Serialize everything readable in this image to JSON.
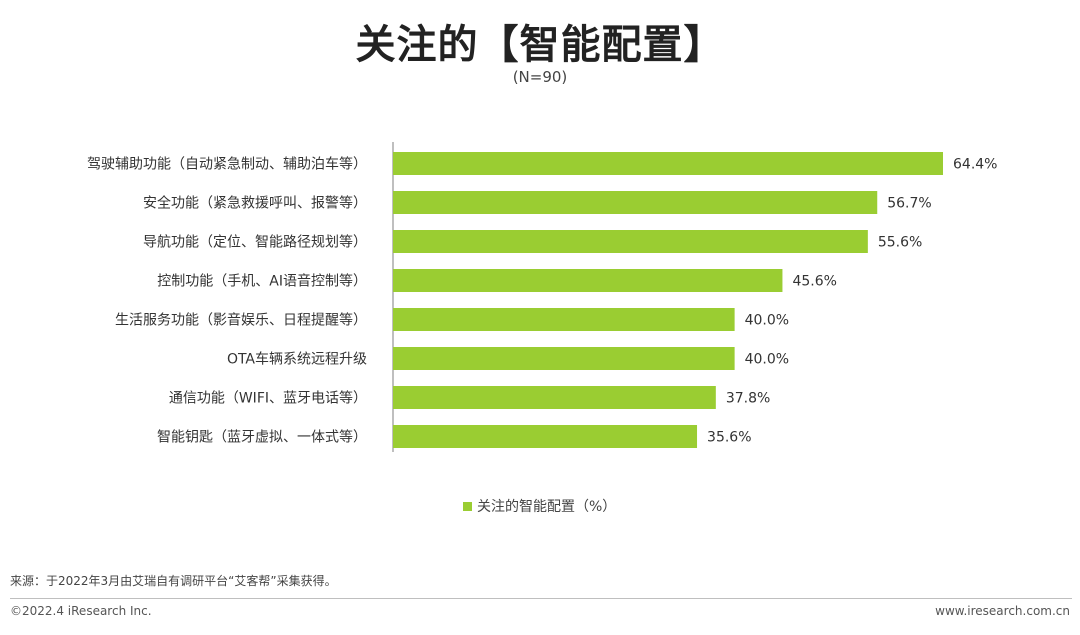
{
  "header": {
    "title": "关注的【智能配置】",
    "subtitle": "(N=90)"
  },
  "legend": {
    "label": "关注的智能配置（%）"
  },
  "colors": {
    "bar": "#9ACD32",
    "axis": "#7f7f7f"
  },
  "footer": {
    "source": "来源：于2022年3月由艾瑞自有调研平台“艾客帮”采集获得。",
    "copyright": "©2022.4 iResearch Inc.",
    "website": "www.iresearch.com.cn"
  },
  "chart_data": {
    "type": "bar",
    "orientation": "horizontal",
    "categories": [
      "驾驶辅助功能（自动紧急制动、辅助泊车等）",
      "安全功能（紧急救援呼叫、报警等）",
      "导航功能（定位、智能路径规划等）",
      "控制功能（手机、AI语音控制等）",
      "生活服务功能（影音娱乐、日程提醒等）",
      "OTA车辆系统远程升级",
      "通信功能（WIFI、蓝牙电话等）",
      "智能钥匙（蓝牙虚拟、一体式等）"
    ],
    "series": [
      {
        "name": "关注的智能配置（%）",
        "values": [
          64.4,
          56.7,
          55.6,
          45.6,
          40.0,
          40.0,
          37.8,
          35.6
        ]
      }
    ],
    "value_labels": [
      "64.4%",
      "56.7%",
      "55.6%",
      "45.6%",
      "40.0%",
      "40.0%",
      "37.8%",
      "35.6%"
    ],
    "xlim": [
      0,
      70
    ],
    "grid": false,
    "legend_position": "bottom"
  }
}
